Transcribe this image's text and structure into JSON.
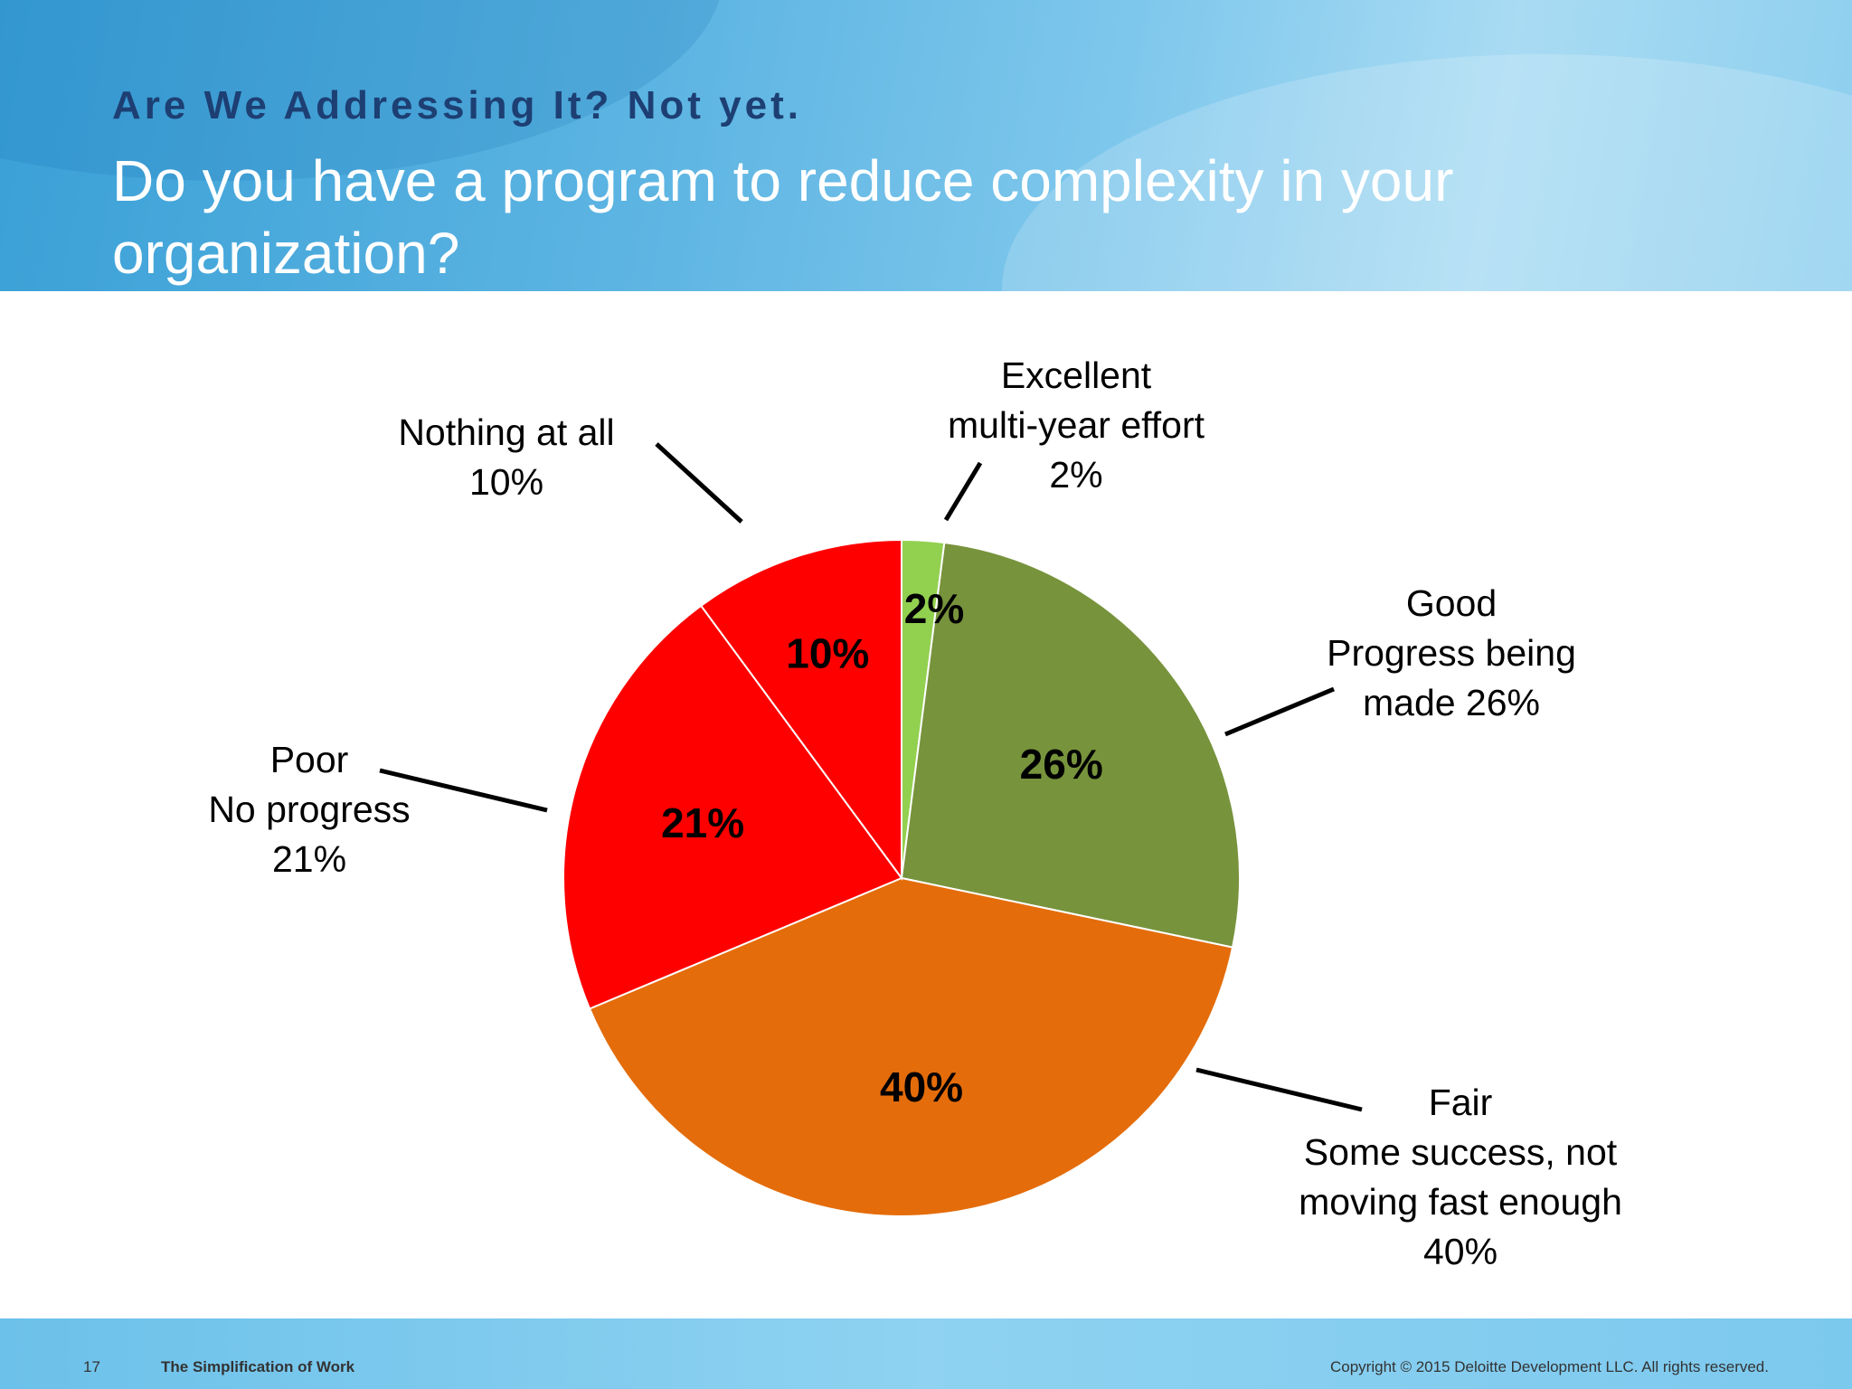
{
  "slide": {
    "kicker": "Are We Addressing It?  Not yet.",
    "question": "Do you have a program to reduce complexity in your organization?"
  },
  "chart_data": {
    "type": "pie",
    "title": "",
    "slices": [
      {
        "name": "Excellent multi-year effort",
        "value": 2,
        "label": "2%",
        "color": "#92d050"
      },
      {
        "name": "Good Progress being made",
        "value": 26,
        "label": "26%",
        "color": "#77933c"
      },
      {
        "name": "Fair Some success, not moving fast enough",
        "value": 40,
        "label": "40%",
        "color": "#e46c0a"
      },
      {
        "name": "Poor No progress",
        "value": 21,
        "label": "21%",
        "color": "#ff0000"
      },
      {
        "name": "Nothing at all",
        "value": 10,
        "label": "10%",
        "color": "#ff0000"
      }
    ]
  },
  "callouts": {
    "excellent": [
      "Excellent",
      "multi-year effort",
      "2%"
    ],
    "good": [
      "Good",
      "Progress being",
      "made 26%"
    ],
    "fair": [
      "Fair",
      "Some success, not",
      "moving fast enough",
      "40%"
    ],
    "poor": [
      "Poor",
      "No progress",
      "21%"
    ],
    "nothing": [
      "Nothing at all",
      "10%"
    ]
  },
  "footer": {
    "page": "17",
    "title": "The Simplification of Work",
    "copyright": "Copyright © 2015 Deloitte Development LLC. All rights reserved."
  }
}
